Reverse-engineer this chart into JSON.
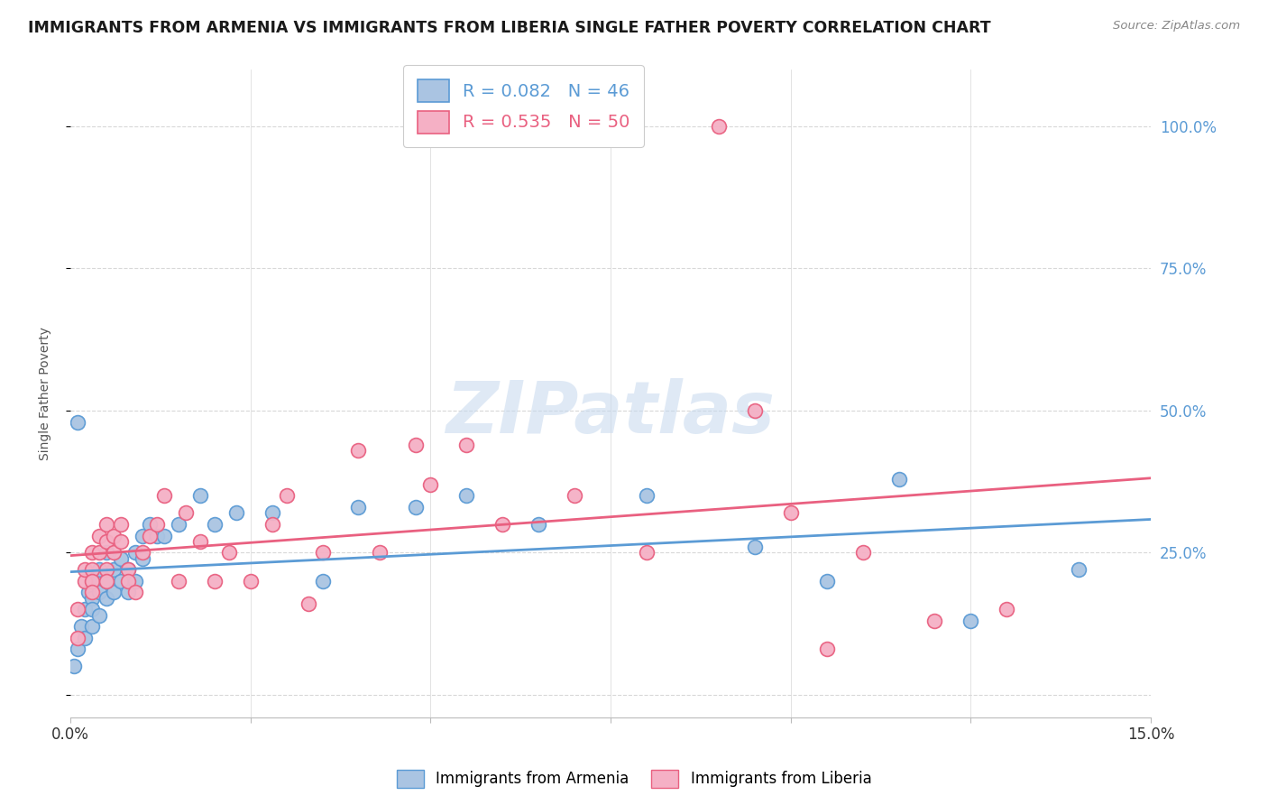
{
  "title": "IMMIGRANTS FROM ARMENIA VS IMMIGRANTS FROM LIBERIA SINGLE FATHER POVERTY CORRELATION CHART",
  "source": "Source: ZipAtlas.com",
  "ylabel": "Single Father Poverty",
  "ylabel_right_ticks": [
    "25.0%",
    "50.0%",
    "75.0%",
    "100.0%"
  ],
  "ylabel_right_vals": [
    0.25,
    0.5,
    0.75,
    1.0
  ],
  "xmin": 0.0,
  "xmax": 0.15,
  "ymin": -0.04,
  "ymax": 1.1,
  "armenia_color": "#aac4e2",
  "liberia_color": "#f5b0c5",
  "armenia_line_color": "#5b9bd5",
  "liberia_line_color": "#e96080",
  "armenia_R": 0.082,
  "armenia_N": 46,
  "liberia_R": 0.535,
  "liberia_N": 50,
  "legend_label_armenia": "Immigrants from Armenia",
  "legend_label_liberia": "Immigrants from Liberia",
  "watermark": "ZIPatlas",
  "armenia_x": [
    0.0005,
    0.001,
    0.001,
    0.0015,
    0.002,
    0.002,
    0.0025,
    0.003,
    0.003,
    0.003,
    0.003,
    0.004,
    0.004,
    0.004,
    0.005,
    0.005,
    0.005,
    0.006,
    0.006,
    0.007,
    0.007,
    0.008,
    0.008,
    0.009,
    0.009,
    0.01,
    0.01,
    0.011,
    0.012,
    0.013,
    0.015,
    0.018,
    0.02,
    0.023,
    0.028,
    0.035,
    0.04,
    0.048,
    0.055,
    0.065,
    0.08,
    0.095,
    0.105,
    0.115,
    0.125,
    0.14
  ],
  "armenia_y": [
    0.05,
    0.48,
    0.08,
    0.12,
    0.15,
    0.1,
    0.18,
    0.2,
    0.17,
    0.15,
    0.12,
    0.22,
    0.18,
    0.14,
    0.25,
    0.2,
    0.17,
    0.22,
    0.18,
    0.24,
    0.2,
    0.22,
    0.18,
    0.25,
    0.2,
    0.28,
    0.24,
    0.3,
    0.28,
    0.28,
    0.3,
    0.35,
    0.3,
    0.32,
    0.32,
    0.2,
    0.33,
    0.33,
    0.35,
    0.3,
    0.35,
    0.26,
    0.2,
    0.38,
    0.13,
    0.22
  ],
  "liberia_x": [
    0.001,
    0.001,
    0.002,
    0.002,
    0.003,
    0.003,
    0.003,
    0.003,
    0.004,
    0.004,
    0.005,
    0.005,
    0.005,
    0.005,
    0.006,
    0.006,
    0.007,
    0.007,
    0.008,
    0.008,
    0.009,
    0.01,
    0.011,
    0.012,
    0.013,
    0.015,
    0.016,
    0.018,
    0.02,
    0.022,
    0.025,
    0.028,
    0.03,
    0.033,
    0.035,
    0.04,
    0.043,
    0.048,
    0.05,
    0.055,
    0.06,
    0.07,
    0.08,
    0.09,
    0.095,
    0.1,
    0.105,
    0.11,
    0.12,
    0.13
  ],
  "liberia_y": [
    0.15,
    0.1,
    0.2,
    0.22,
    0.25,
    0.22,
    0.2,
    0.18,
    0.28,
    0.25,
    0.3,
    0.27,
    0.22,
    0.2,
    0.28,
    0.25,
    0.3,
    0.27,
    0.22,
    0.2,
    0.18,
    0.25,
    0.28,
    0.3,
    0.35,
    0.2,
    0.32,
    0.27,
    0.2,
    0.25,
    0.2,
    0.3,
    0.35,
    0.16,
    0.25,
    0.43,
    0.25,
    0.44,
    0.37,
    0.44,
    0.3,
    0.35,
    0.25,
    1.0,
    0.5,
    0.32,
    0.08,
    0.25,
    0.13,
    0.15
  ],
  "background_color": "#ffffff",
  "grid_color": "#d8d8d8",
  "title_color": "#1a1a1a",
  "right_axis_color": "#5b9bd5"
}
